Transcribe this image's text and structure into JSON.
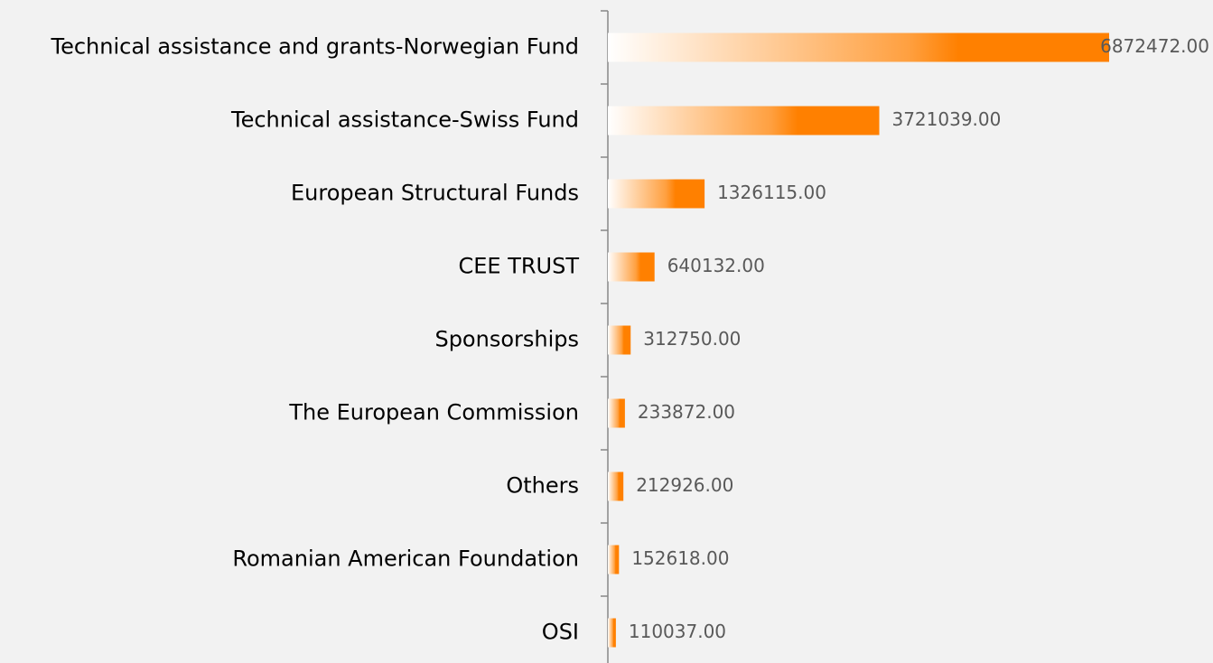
{
  "chart_data": {
    "type": "bar",
    "orientation": "horizontal",
    "color": "#ff8000",
    "categories": [
      "Technical assistance and grants-Norwegian Fund",
      "Technical assistance-Swiss Fund",
      "European Structural Funds",
      "CEE TRUST",
      "Sponsorships",
      "The European Commission",
      "Others",
      "Romanian American Foundation",
      "OSI"
    ],
    "values": [
      6872472,
      3721039,
      1326115,
      640132,
      312750,
      233872,
      212926,
      152618,
      110037
    ],
    "value_labels": [
      "6872472.00",
      "3721039.00",
      "1326115.00",
      "640132.00",
      "312750.00",
      "233872.00",
      "212926.00",
      "152618.00",
      "110037.00"
    ]
  }
}
